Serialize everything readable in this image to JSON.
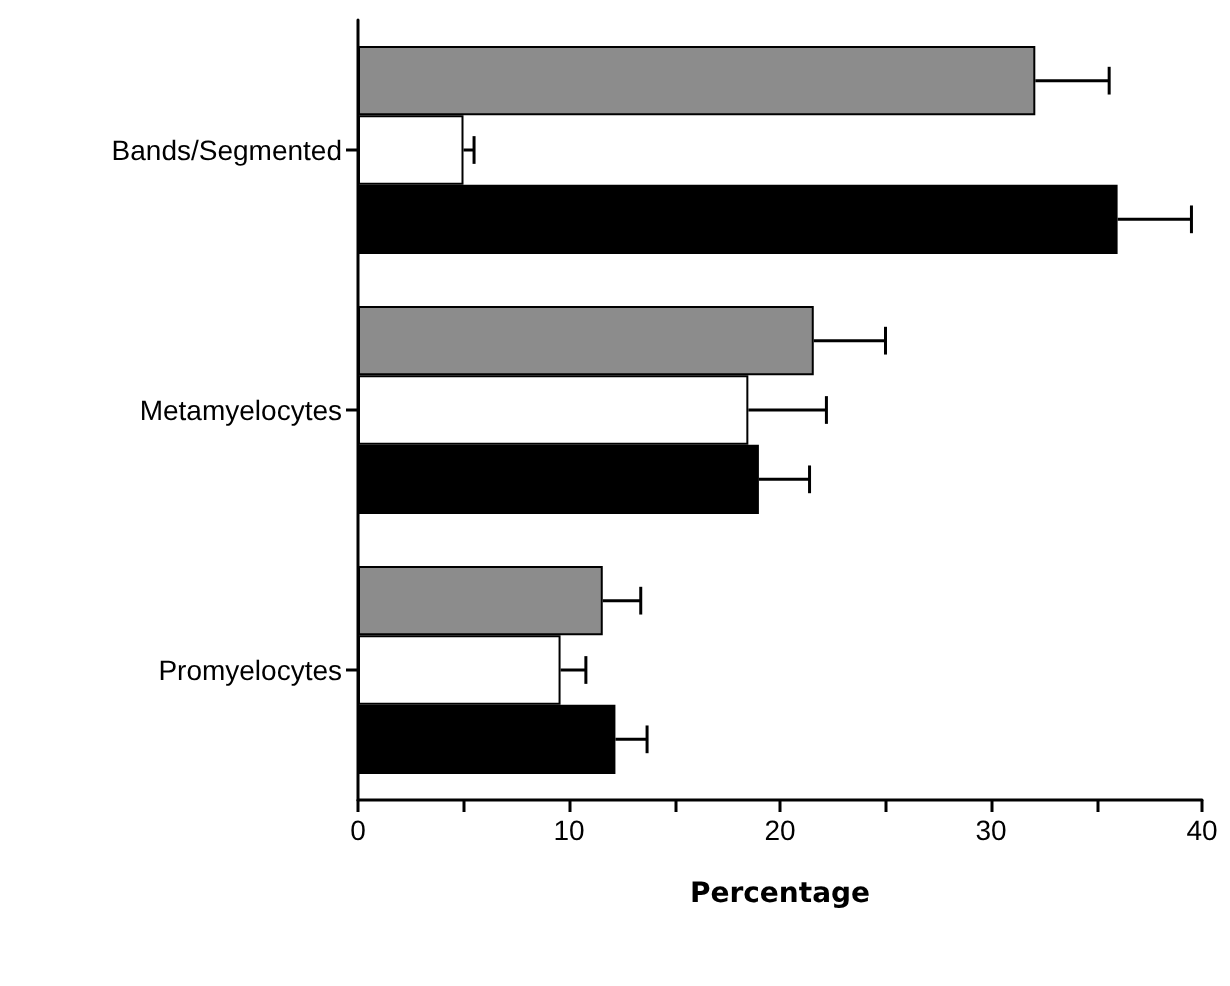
{
  "chart_data": {
    "type": "bar",
    "orientation": "horizontal",
    "xlabel": "Percentage",
    "categories": [
      "Bands/Segmented",
      "Metamyelocytes",
      "Promyelocytes"
    ],
    "series": [
      {
        "color": "#8c8c8c",
        "values": [
          32.1,
          21.6,
          11.6
        ],
        "errors": [
          3.5,
          3.4,
          1.8
        ]
      },
      {
        "color": "#ffffff",
        "values": [
          5.0,
          18.5,
          9.6
        ],
        "errors": [
          0.5,
          3.7,
          1.2
        ]
      },
      {
        "color": "#000000",
        "values": [
          36.0,
          19.0,
          12.2
        ],
        "errors": [
          3.5,
          2.4,
          1.5
        ]
      }
    ],
    "xlim": [
      0,
      40
    ],
    "xticks": [
      0,
      {
        "value": 5,
        "label": null
      },
      10,
      {
        "value": 15,
        "label": null
      },
      20,
      {
        "value": 25,
        "label": null
      },
      30,
      {
        "value": 35,
        "label": null
      },
      40
    ],
    "grid": false
  }
}
